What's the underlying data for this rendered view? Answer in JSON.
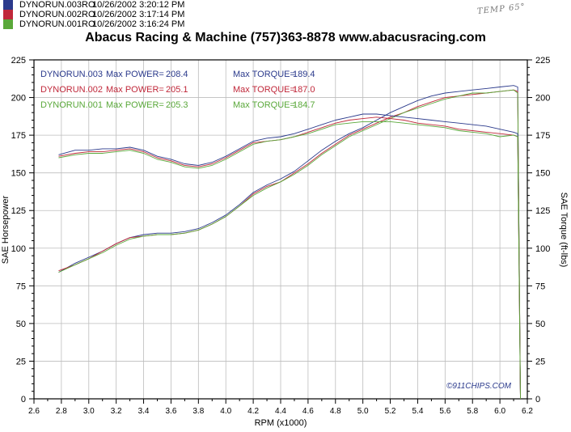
{
  "runs": [
    {
      "name": "DYNORUN.003RO",
      "date": "10/26/2002 3:20:12 PM",
      "color": "#2b3a8c",
      "swatch": [
        "#2b3a8c",
        "#2b3a8c",
        "#2b3a8c",
        "#2b3a8c"
      ]
    },
    {
      "name": "DYNORUN.002RO",
      "date": "10/26/2002 3:17:14 PM",
      "color": "#c0283a",
      "swatch": [
        "#c0283a",
        "#c0283a",
        "#c0283a",
        "#c0283a"
      ]
    },
    {
      "name": "DYNORUN.001RO",
      "date": "10/26/2002 3:16:24 PM",
      "color": "#5aa83a",
      "swatch": [
        "#5aa83a",
        "#5aa83a",
        "#5aa83a",
        "#5aa83a"
      ]
    }
  ],
  "note": "TEMP 65°",
  "title": "Abacus Racing & Machine (757)363-8878 www.abacusracing.com",
  "watermark": "©911CHIPS.COM",
  "chart_data": {
    "type": "line",
    "xlabel": "RPM (x1000)",
    "ylabel": "SAE Horsepower",
    "ylabel_right": "SAE Torque (ft-lbs)",
    "xlim": [
      2.6,
      6.2
    ],
    "ylim": [
      0,
      225
    ],
    "ylim_right": [
      0,
      225
    ],
    "x_ticks": [
      "2.6",
      "2.8",
      "3.0",
      "3.2",
      "3.4",
      "3.6",
      "3.8",
      "4.0",
      "4.2",
      "4.4",
      "4.6",
      "4.8",
      "5.0",
      "5.2",
      "5.4",
      "5.6",
      "5.8",
      "6.0",
      "6.2"
    ],
    "y_ticks": [
      "0",
      "25",
      "50",
      "75",
      "100",
      "125",
      "150",
      "175",
      "200",
      "225"
    ],
    "grid": true,
    "legend": [
      {
        "run": "DYNORUN.003",
        "power_label": "Max POWER=",
        "power": "208.4",
        "torque_label": "Max TORQUE=",
        "torque": "189.4",
        "color": "#2b3a8c"
      },
      {
        "run": "DYNORUN.002",
        "power_label": "Max POWER=",
        "power": "205.1",
        "torque_label": "Max TORQUE=",
        "torque": "187.0",
        "color": "#c0283a"
      },
      {
        "run": "DYNORUN.001",
        "power_label": "Max POWER=",
        "power": "205.3",
        "torque_label": "Max TORQUE=",
        "torque": "184.7",
        "color": "#5aa83a"
      }
    ],
    "x": [
      2.78,
      2.9,
      3.0,
      3.1,
      3.2,
      3.3,
      3.4,
      3.5,
      3.6,
      3.7,
      3.8,
      3.9,
      4.0,
      4.1,
      4.2,
      4.3,
      4.4,
      4.5,
      4.6,
      4.7,
      4.8,
      4.9,
      5.0,
      5.1,
      5.2,
      5.3,
      5.4,
      5.5,
      5.6,
      5.7,
      5.8,
      5.9,
      6.0,
      6.1,
      6.13
    ],
    "series": [
      {
        "name": "DYNORUN.003",
        "metric": "power",
        "color": "#2b3a8c",
        "values": [
          84,
          90,
          94,
          98,
          103,
          107,
          109,
          110,
          110,
          111,
          113,
          117,
          122,
          129,
          137,
          142,
          146,
          151,
          158,
          165,
          171,
          176,
          180,
          185,
          190,
          194,
          198,
          201,
          203,
          204,
          205,
          206,
          207,
          208,
          207
        ]
      },
      {
        "name": "DYNORUN.002",
        "metric": "power",
        "color": "#c0283a",
        "values": [
          85,
          89,
          93,
          98,
          103,
          107,
          108,
          109,
          109,
          110,
          112,
          116,
          121,
          128,
          136,
          141,
          144,
          150,
          156,
          163,
          169,
          175,
          179,
          183,
          187,
          190,
          194,
          197,
          200,
          201,
          202,
          203,
          204,
          205,
          204
        ]
      },
      {
        "name": "DYNORUN.001",
        "metric": "power",
        "color": "#5aa83a",
        "values": [
          84,
          89,
          93,
          97,
          102,
          106,
          108,
          109,
          109,
          110,
          112,
          116,
          121,
          128,
          135,
          140,
          144,
          149,
          155,
          162,
          168,
          174,
          178,
          182,
          186,
          190,
          193,
          196,
          199,
          201,
          203,
          203,
          204,
          205,
          203
        ]
      },
      {
        "name": "DYNORUN.003",
        "metric": "torque",
        "color": "#2b3a8c",
        "values": [
          162,
          165,
          165,
          166,
          166,
          167,
          165,
          161,
          159,
          156,
          155,
          157,
          161,
          166,
          171,
          173,
          174,
          176,
          179,
          182,
          185,
          187,
          189,
          189,
          188,
          187,
          186,
          185,
          184,
          183,
          182,
          181,
          179,
          177,
          176
        ]
      },
      {
        "name": "DYNORUN.002",
        "metric": "torque",
        "color": "#c0283a",
        "values": [
          161,
          163,
          164,
          164,
          165,
          166,
          164,
          160,
          158,
          155,
          154,
          156,
          160,
          165,
          170,
          171,
          172,
          174,
          177,
          180,
          183,
          185,
          186,
          187,
          186,
          185,
          183,
          182,
          181,
          179,
          178,
          177,
          176,
          175,
          174
        ]
      },
      {
        "name": "DYNORUN.001",
        "metric": "torque",
        "color": "#5aa83a",
        "values": [
          160,
          162,
          163,
          163,
          164,
          165,
          163,
          159,
          157,
          154,
          153,
          155,
          159,
          164,
          169,
          171,
          172,
          174,
          176,
          179,
          182,
          183,
          184,
          184,
          184,
          183,
          182,
          181,
          180,
          178,
          177,
          176,
          174,
          175,
          174
        ]
      }
    ]
  }
}
